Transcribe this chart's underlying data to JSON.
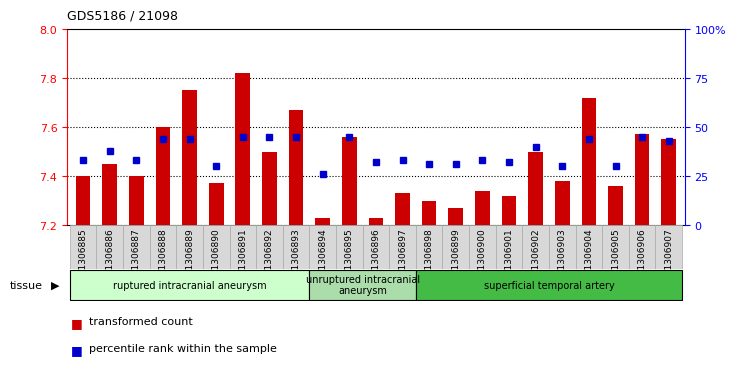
{
  "title": "GDS5186 / 21098",
  "samples": [
    "GSM1306885",
    "GSM1306886",
    "GSM1306887",
    "GSM1306888",
    "GSM1306889",
    "GSM1306890",
    "GSM1306891",
    "GSM1306892",
    "GSM1306893",
    "GSM1306894",
    "GSM1306895",
    "GSM1306896",
    "GSM1306897",
    "GSM1306898",
    "GSM1306899",
    "GSM1306900",
    "GSM1306901",
    "GSM1306902",
    "GSM1306903",
    "GSM1306904",
    "GSM1306905",
    "GSM1306906",
    "GSM1306907"
  ],
  "transformed_count": [
    7.4,
    7.45,
    7.4,
    7.6,
    7.75,
    7.37,
    7.82,
    7.5,
    7.67,
    7.23,
    7.56,
    7.23,
    7.33,
    7.3,
    7.27,
    7.34,
    7.32,
    7.5,
    7.38,
    7.72,
    7.36,
    7.57,
    7.55
  ],
  "percentile_rank": [
    33,
    38,
    33,
    44,
    44,
    30,
    45,
    45,
    45,
    26,
    45,
    32,
    33,
    31,
    31,
    33,
    32,
    40,
    30,
    44,
    30,
    45,
    43
  ],
  "ylim_left": [
    7.2,
    8.0
  ],
  "ylim_right": [
    0,
    100
  ],
  "yticks_left": [
    7.2,
    7.4,
    7.6,
    7.8,
    8.0
  ],
  "yticks_right": [
    0,
    25,
    50,
    75,
    100
  ],
  "ytick_labels_right": [
    "0",
    "25",
    "50",
    "75",
    "100%"
  ],
  "bar_color": "#cc0000",
  "dot_color": "#0000cc",
  "group_borders": [
    {
      "start": 0,
      "end": 9,
      "label": "ruptured intracranial aneurysm",
      "color": "#ccffcc"
    },
    {
      "start": 9,
      "end": 13,
      "label": "unruptured intracranial\naneurysm",
      "color": "#aaddaa"
    },
    {
      "start": 13,
      "end": 23,
      "label": "superficial temporal artery",
      "color": "#44bb44"
    }
  ],
  "xlabel_tissue": "tissue",
  "legend_transformed": "transformed count",
  "legend_percentile": "percentile rank within the sample",
  "bar_color_leg": "#cc0000",
  "dot_color_leg": "#0000cc",
  "dotted_lines": [
    7.4,
    7.6,
    7.8
  ],
  "tick_bg": "#d8d8d8"
}
